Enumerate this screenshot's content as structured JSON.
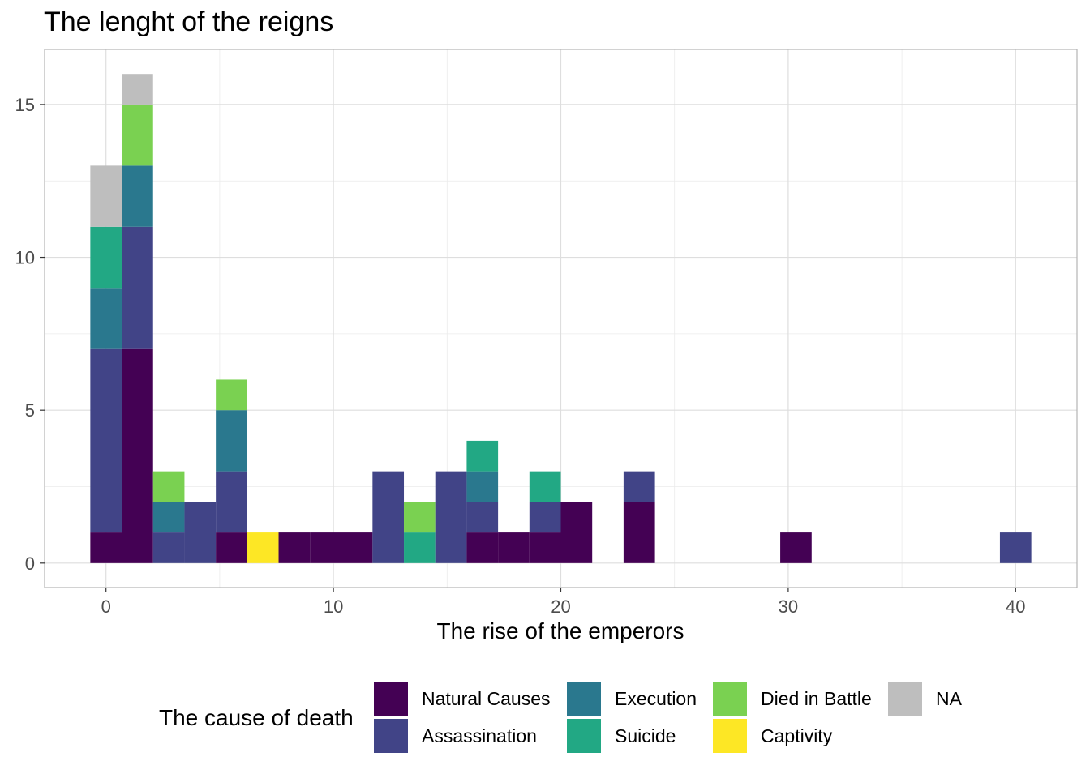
{
  "chart_data": {
    "type": "bar",
    "stacked": true,
    "title": "The lenght of the reigns",
    "xlabel": "The rise of the emperors",
    "ylabel": "",
    "xlim": [
      -2.7,
      42.7
    ],
    "ylim": [
      -0.8,
      16.8
    ],
    "x_ticks": [
      0,
      10,
      20,
      30,
      40
    ],
    "y_ticks": [
      0,
      5,
      10,
      15
    ],
    "bin_width": 1.38,
    "grid": true,
    "legend_position": "bottom",
    "legend_title": "The cause of death",
    "categories": [
      "0",
      "1.38",
      "2.76",
      "4.14",
      "5.52",
      "6.9",
      "8.28",
      "9.66",
      "11.03",
      "12.41",
      "13.79",
      "15.17",
      "16.55",
      "17.93",
      "19.31",
      "20.69",
      "23.45",
      "30.34",
      "40"
    ],
    "series": [
      {
        "name": "Natural Causes",
        "color": "#440154",
        "values": [
          1,
          7,
          0,
          0,
          1,
          0,
          1,
          1,
          1,
          0,
          0,
          0,
          1,
          1,
          1,
          2,
          2,
          1,
          0
        ]
      },
      {
        "name": "Assassination",
        "color": "#414487",
        "values": [
          6,
          4,
          1,
          2,
          2,
          0,
          0,
          0,
          0,
          3,
          0,
          3,
          1,
          0,
          1,
          0,
          1,
          0,
          1
        ]
      },
      {
        "name": "Execution",
        "color": "#2A788E",
        "values": [
          2,
          2,
          1,
          0,
          2,
          0,
          0,
          0,
          0,
          0,
          0,
          0,
          1,
          0,
          0,
          0,
          0,
          0,
          0
        ]
      },
      {
        "name": "Suicide",
        "color": "#22A884",
        "values": [
          2,
          0,
          0,
          0,
          0,
          0,
          0,
          0,
          0,
          0,
          1,
          0,
          1,
          0,
          1,
          0,
          0,
          0,
          0
        ]
      },
      {
        "name": "Died in Battle",
        "color": "#7AD151",
        "values": [
          0,
          2,
          1,
          0,
          1,
          0,
          0,
          0,
          0,
          0,
          1,
          0,
          0,
          0,
          0,
          0,
          0,
          0,
          0
        ]
      },
      {
        "name": "Captivity",
        "color": "#FDE725",
        "values": [
          0,
          0,
          0,
          0,
          0,
          1,
          0,
          0,
          0,
          0,
          0,
          0,
          0,
          0,
          0,
          0,
          0,
          0,
          0
        ]
      },
      {
        "name": "NA",
        "color": "#BEBEBE",
        "values": [
          2,
          1,
          0,
          0,
          0,
          0,
          0,
          0,
          0,
          0,
          0,
          0,
          0,
          0,
          0,
          0,
          0,
          0,
          0
        ]
      }
    ]
  }
}
